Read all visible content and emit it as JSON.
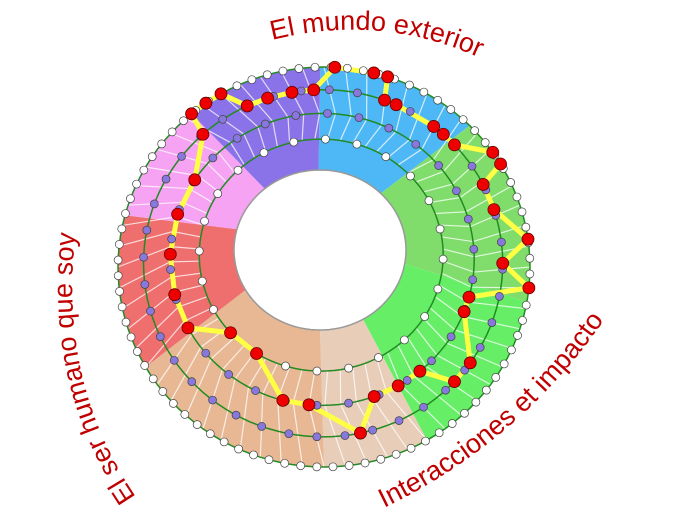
{
  "labels": {
    "top": "El mundo exterior",
    "left": "El ser humano que soy",
    "bottom_right": "Interacciones et impacto"
  },
  "colors": {
    "label": "#c00000",
    "path": "#ffff44",
    "path_nodes": "#ee0000",
    "ring_lines": "#228b22",
    "inner_nodes": "#8877dd",
    "sectors": [
      "#4db8f5",
      "#80dd6c",
      "#66ee66",
      "#e8cdb8",
      "#e8b894",
      "#ef6e6e",
      "#f5a3f2",
      "#8a72e8"
    ]
  }
}
